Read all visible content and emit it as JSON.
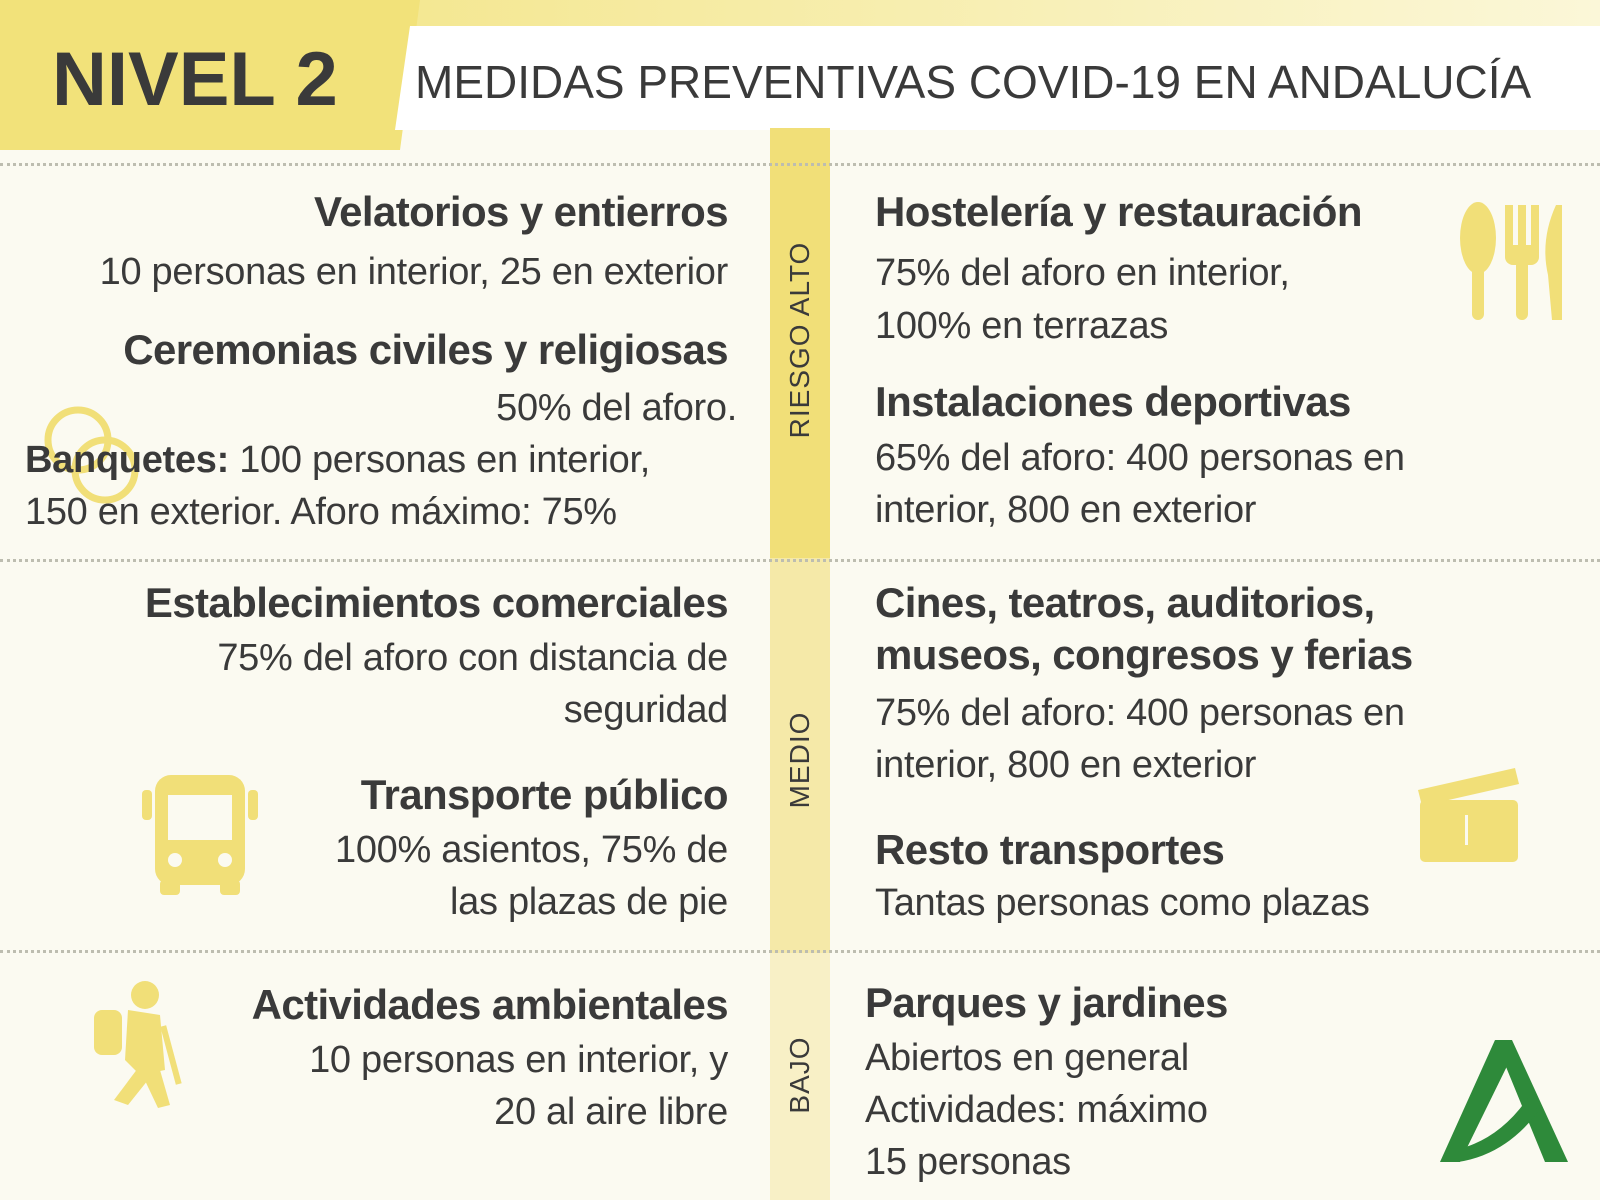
{
  "header": {
    "level": "NIVEL 2",
    "title": "MEDIDAS PREVENTIVAS COVID-19 EN ANDALUCÍA"
  },
  "risk_levels": [
    "RIESGO ALTO",
    "MEDIO",
    "BAJO"
  ],
  "blocks": [
    {
      "heading": "Velatorios y entierros",
      "lines": [
        "10 personas en interior, 25 en exterior"
      ]
    },
    {
      "heading": "Ceremonias civiles y religiosas",
      "lines": [
        "50% del aforo."
      ]
    },
    {
      "label": "Banquetes:",
      "lines": [
        "100 personas en interior,",
        "150 en exterior. Aforo máximo: 75%"
      ]
    },
    {
      "heading": "Hostelería y restauración",
      "lines": [
        "75% del aforo en interior,",
        "100% en terrazas"
      ]
    },
    {
      "heading": "Instalaciones deportivas",
      "lines": [
        "65% del aforo: 400 personas en",
        "interior, 800 en exterior"
      ]
    },
    {
      "heading": "Establecimientos comerciales",
      "lines": [
        "75% del aforo con distancia de",
        "seguridad"
      ]
    },
    {
      "heading": "Transporte público",
      "lines": [
        "100% asientos, 75% de",
        "las plazas de pie"
      ]
    },
    {
      "heading": "Cines, teatros, auditorios,",
      "heading_line2": "museos, congresos y ferias",
      "lines": [
        "75% del aforo: 400 personas en",
        "interior, 800 en exterior"
      ]
    },
    {
      "heading": "Resto transportes",
      "lines": [
        "Tantas personas como plazas"
      ]
    },
    {
      "heading": "Actividades ambientales",
      "lines": [
        "10 personas en interior, y",
        "20 al aire libre"
      ]
    },
    {
      "heading": "Parques y jardines",
      "lines": [
        "Abiertos en general",
        "Actividades: máximo",
        "15 personas"
      ]
    }
  ]
}
